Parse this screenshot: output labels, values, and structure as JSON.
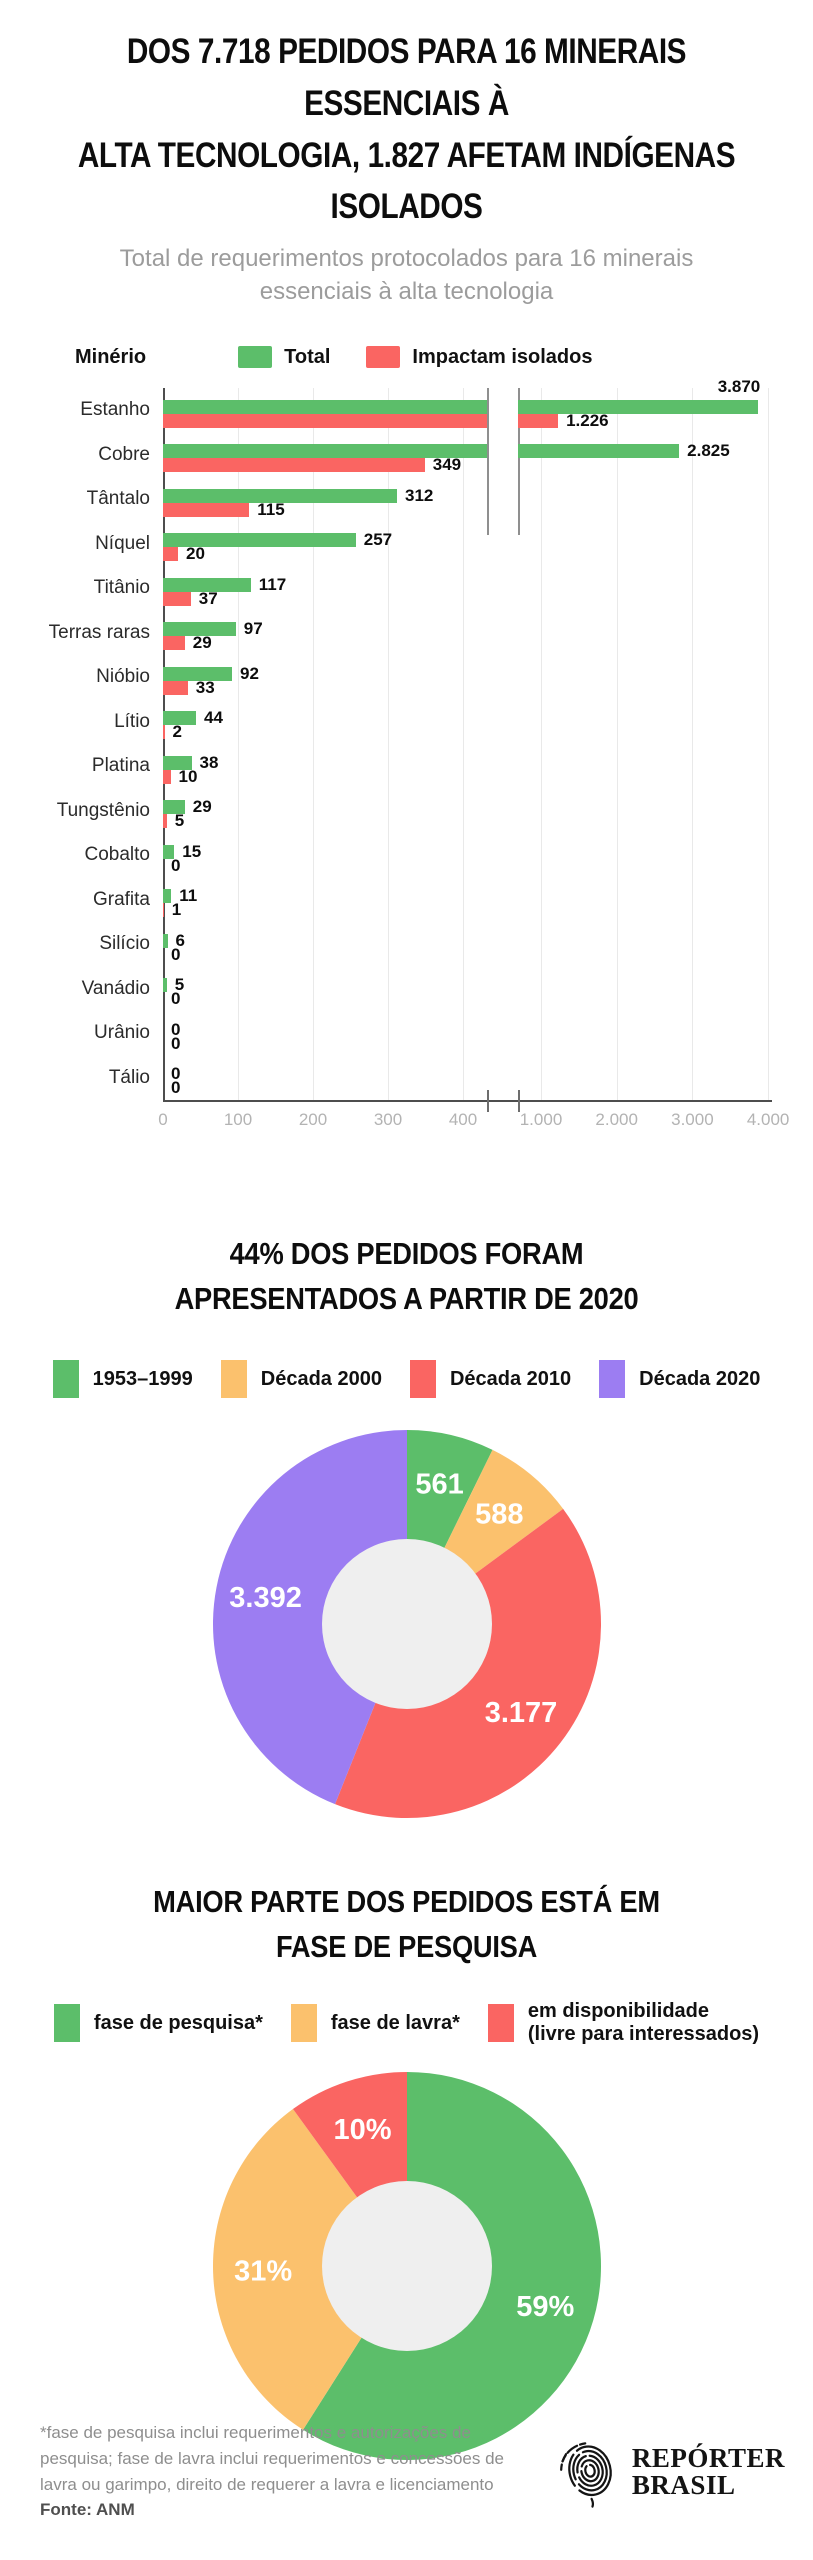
{
  "header": {
    "title_lines": [
      "DOS 7.718 PEDIDOS PARA 16 MINERAIS ESSENCIAIS À",
      "ALTA TECNOLOGIA, 1.827 AFETAM INDÍGENAS ISOLADOS"
    ],
    "subtitle_lines": [
      "Total de requerimentos protocolados para 16 minerais",
      "essenciais à alta tecnologia"
    ]
  },
  "colors": {
    "green": "#5cbe6a",
    "red": "#fa6562",
    "orange": "#fbc16d",
    "purple": "#9c7df2",
    "hole": "#efefef",
    "axis": "#4d4d4d",
    "grid": "#e9e9e9",
    "tick_text": "#b3b3b3"
  },
  "chart_data": [
    {
      "type": "bar",
      "orientation": "horizontal",
      "axis_header": "Minério",
      "broken_axis_between": [
        400,
        1000
      ],
      "xlim_left_panel": [
        0,
        430
      ],
      "xlim_right_panel": [
        1000,
        4000
      ],
      "legend": [
        {
          "label": "Total",
          "color_key": "green"
        },
        {
          "label": "Impactam isolados",
          "color_key": "red"
        }
      ],
      "x_ticks": [
        {
          "value": 0,
          "label": "0"
        },
        {
          "value": 100,
          "label": "100"
        },
        {
          "value": 200,
          "label": "200"
        },
        {
          "value": 300,
          "label": "300"
        },
        {
          "value": 400,
          "label": "400"
        },
        {
          "value": 1000,
          "label": "1.000"
        },
        {
          "value": 2000,
          "label": "2.000"
        },
        {
          "value": 3000,
          "label": "3.000"
        },
        {
          "value": 4000,
          "label": "4.000"
        }
      ],
      "rows": [
        {
          "label": "Estanho",
          "total": 3870,
          "total_label": "3.870",
          "total_label_above": true,
          "isolados": 1226,
          "isolados_label": "1.226"
        },
        {
          "label": "Cobre",
          "total": 2825,
          "total_label": "2.825",
          "total_label_above": false,
          "isolados": 349,
          "isolados_label": "349"
        },
        {
          "label": "Tântalo",
          "total": 312,
          "total_label": "312",
          "total_label_above": false,
          "isolados": 115,
          "isolados_label": "115"
        },
        {
          "label": "Níquel",
          "total": 257,
          "total_label": "257",
          "total_label_above": false,
          "isolados": 20,
          "isolados_label": "20"
        },
        {
          "label": "Titânio",
          "total": 117,
          "total_label": "117",
          "total_label_above": false,
          "isolados": 37,
          "isolados_label": "37"
        },
        {
          "label": "Terras raras",
          "total": 97,
          "total_label": "97",
          "total_label_above": false,
          "isolados": 29,
          "isolados_label": "29"
        },
        {
          "label": "Nióbio",
          "total": 92,
          "total_label": "92",
          "total_label_above": false,
          "isolados": 33,
          "isolados_label": "33"
        },
        {
          "label": "Lítio",
          "total": 44,
          "total_label": "44",
          "total_label_above": false,
          "isolados": 2,
          "isolados_label": "2"
        },
        {
          "label": "Platina",
          "total": 38,
          "total_label": "38",
          "total_label_above": false,
          "isolados": 10,
          "isolados_label": "10"
        },
        {
          "label": "Tungstênio",
          "total": 29,
          "total_label": "29",
          "total_label_above": false,
          "isolados": 5,
          "isolados_label": "5"
        },
        {
          "label": "Cobalto",
          "total": 15,
          "total_label": "15",
          "total_label_above": false,
          "isolados": 0,
          "isolados_label": "0"
        },
        {
          "label": "Grafita",
          "total": 11,
          "total_label": "11",
          "total_label_above": false,
          "isolados": 1,
          "isolados_label": "1"
        },
        {
          "label": "Silício",
          "total": 6,
          "total_label": "6",
          "total_label_above": false,
          "isolados": 0,
          "isolados_label": "0"
        },
        {
          "label": "Vanádio",
          "total": 5,
          "total_label": "5",
          "total_label_above": false,
          "isolados": 0,
          "isolados_label": "0"
        },
        {
          "label": "Urânio",
          "total": 0,
          "total_label": "0",
          "total_label_above": false,
          "isolados": 0,
          "isolados_label": "0"
        },
        {
          "label": "Tálio",
          "total": 0,
          "total_label": "0",
          "total_label_above": false,
          "isolados": 0,
          "isolados_label": "0"
        }
      ]
    },
    {
      "type": "pie",
      "title_lines": [
        "44% DOS PEDIDOS FORAM",
        "APRESENTADOS A PARTIR DE 2020"
      ],
      "total": 7718,
      "legend": [
        {
          "label": "1953–1999",
          "color_key": "green"
        },
        {
          "label": "Década 2000",
          "color_key": "orange"
        },
        {
          "label": "Década 2010",
          "color_key": "red"
        },
        {
          "label": "Década 2020",
          "color_key": "purple"
        }
      ],
      "slices": [
        {
          "label": "1953–1999",
          "value": 561,
          "display": "561",
          "color_key": "green"
        },
        {
          "label": "Década 2000",
          "value": 588,
          "display": "588",
          "color_key": "orange"
        },
        {
          "label": "Década 2010",
          "value": 3177,
          "display": "3.177",
          "color_key": "red"
        },
        {
          "label": "Década 2020",
          "value": 3392,
          "display": "3.392",
          "color_key": "purple"
        }
      ]
    },
    {
      "type": "pie",
      "title_lines": [
        "MAIOR PARTE DOS PEDIDOS ESTÁ EM",
        "FASE DE PESQUISA"
      ],
      "legend": [
        {
          "lines": [
            "fase de pesquisa*"
          ],
          "color_key": "green"
        },
        {
          "lines": [
            "fase de lavra*"
          ],
          "color_key": "orange"
        },
        {
          "lines": [
            "em disponibilidade",
            "(livre para interessados)"
          ],
          "color_key": "red"
        }
      ],
      "slices": [
        {
          "label": "fase de pesquisa*",
          "value": 59,
          "display": "59%",
          "color_key": "green"
        },
        {
          "label": "fase de lavra*",
          "value": 31,
          "display": "31%",
          "color_key": "orange"
        },
        {
          "label": "em disponibilidade (livre para interessados)",
          "value": 10,
          "display": "10%",
          "color_key": "red"
        }
      ]
    }
  ],
  "footer": {
    "lines": [
      "*fase de pesquisa inclui requerimentos e autorizações de",
      "pesquisa; fase de lavra inclui requerimentos e concessões de",
      "lavra ou garimpo, direito de requerer a lavra e licenciamento"
    ],
    "source": "Fonte: ANM",
    "logo_lines": [
      "REPÓRTER",
      "BRASIL"
    ]
  }
}
